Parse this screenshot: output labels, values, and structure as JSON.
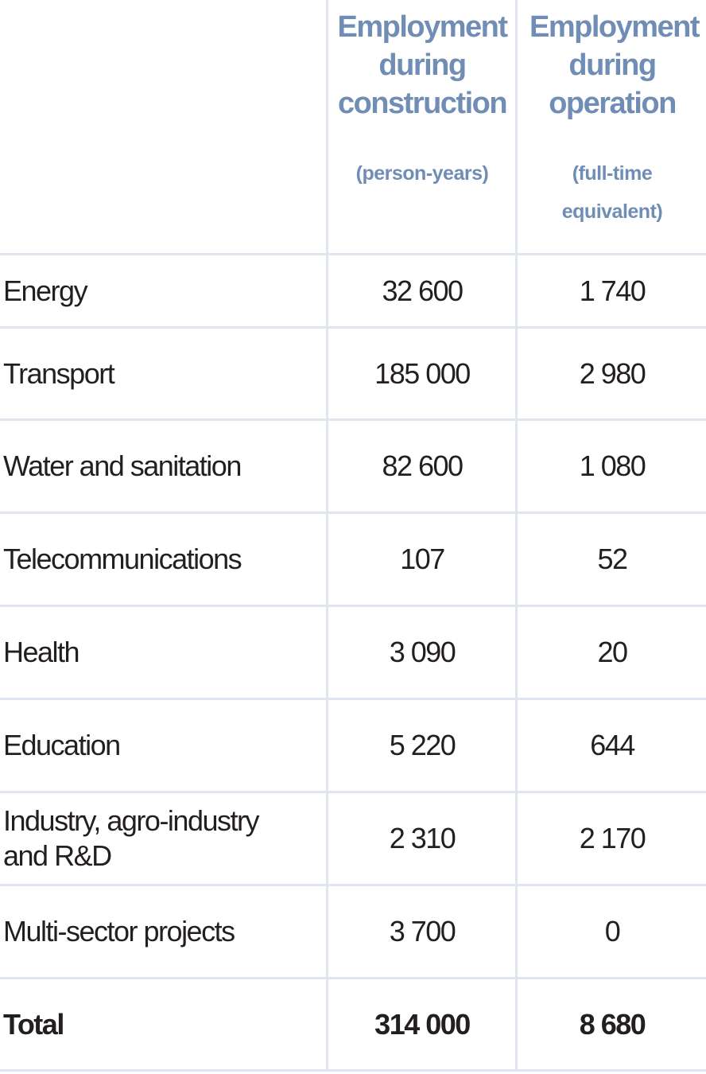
{
  "chart_data": {
    "type": "table",
    "columns": [
      {
        "title": "Employment during construction",
        "unit": "(person-years)"
      },
      {
        "title": "Employment during operation",
        "unit": "(full-time equivalent)"
      }
    ],
    "rows": [
      {
        "label": "Energy",
        "construction": "32 600",
        "operation": "1 740"
      },
      {
        "label": "Transport",
        "construction": "185 000",
        "operation": "2 980"
      },
      {
        "label": "Water and sanitation",
        "construction": "82 600",
        "operation": "1 080"
      },
      {
        "label": "Telecommunications",
        "construction": "107",
        "operation": "52"
      },
      {
        "label": "Health",
        "construction": "3 090",
        "operation": "20"
      },
      {
        "label": "Education",
        "construction": "5 220",
        "operation": "644"
      },
      {
        "label": "Industry, agro-industry and R&D",
        "construction": "2 310",
        "operation": "2 170"
      },
      {
        "label": "Multi-sector projects",
        "construction": "3 700",
        "operation": "0"
      }
    ],
    "total": {
      "label": "Total",
      "construction": "314 000",
      "operation": "8 680"
    }
  },
  "colors": {
    "header_text": "#6f8db5",
    "grid_lines": "#dfe6ef",
    "body_text": "#231f20"
  }
}
